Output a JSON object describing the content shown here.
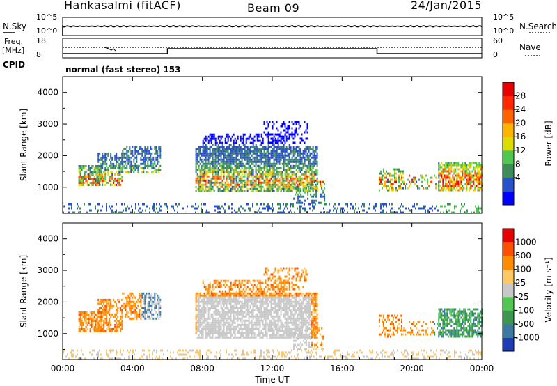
{
  "header": {
    "station": "Hankasalmi (fitACF)",
    "beam": "Beam 09",
    "date": "24/Jan/2015"
  },
  "noise_panel": {
    "left_label": "N.Sky",
    "right_label": "N.Search",
    "ticks_left": [
      "10^5",
      "10^0"
    ],
    "ticks_right": [
      "10^5",
      "10^0"
    ]
  },
  "freq_panel": {
    "left_label_1": "Freq.",
    "left_label_2": "[MHz]",
    "right_label": "Nave",
    "ticks_left": [
      "18",
      "8"
    ],
    "ticks_right": [
      "60",
      "0"
    ]
  },
  "cpid": {
    "label": "CPID",
    "value": "normal (fast stereo) 153"
  },
  "chart_data": [
    {
      "type": "heatmap",
      "name": "power",
      "ylabel": "Slant Range [km]",
      "ylim": [
        180,
        4500
      ],
      "yticks": [
        1000,
        2000,
        3000,
        4000
      ],
      "xlim": [
        0,
        24
      ],
      "colorbar": {
        "label": "Power [dB]",
        "ticks": [
          "28",
          "24",
          "20",
          "16",
          "12",
          "8",
          "4"
        ],
        "colors": [
          "#0000ff",
          "#2850c8",
          "#3c8c5a",
          "#50c850",
          "#dcdc00",
          "#ffb400",
          "#ff6400",
          "#ff2800",
          "#e60000"
        ]
      }
    },
    {
      "type": "heatmap",
      "name": "velocity",
      "ylabel": "Slant Range [km]",
      "ylim": [
        180,
        4500
      ],
      "yticks": [
        1000,
        2000,
        3000,
        4000
      ],
      "xlim": [
        0,
        24
      ],
      "colorbar": {
        "label": "Velocity [m s⁻¹]",
        "ticks": [
          "1000",
          "500",
          "100",
          "25",
          "-25",
          "-100",
          "-500",
          "-1000"
        ],
        "colors": [
          "#1e3cb4",
          "#3c78a0",
          "#3c9650",
          "#50c850",
          "#c8c8c8",
          "#ffc864",
          "#ff8c00",
          "#ff5000",
          "#e60000"
        ]
      }
    }
  ],
  "x_axis": {
    "label": "Time UT",
    "ticks": [
      "00:00",
      "04:00",
      "08:00",
      "12:00",
      "16:00",
      "20:00",
      "00:00"
    ]
  }
}
